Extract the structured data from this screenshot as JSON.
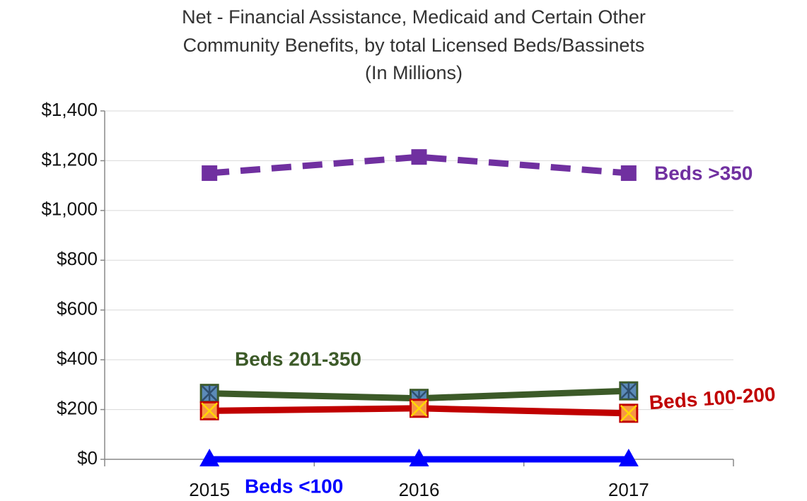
{
  "chart_data": {
    "type": "line",
    "title": [
      "Net - Financial Assistance, Medicaid and Certain Other",
      "Community Benefits, by total Licensed Beds/Bassinets",
      "(In Millions)"
    ],
    "categories": [
      "2015",
      "2016",
      "2017"
    ],
    "series": [
      {
        "name": "Beds >350",
        "color": "#7030a0",
        "values": [
          1150,
          1215,
          1150
        ],
        "dash": true,
        "marker": "square"
      },
      {
        "name": "Beds 201-350",
        "color": "#3c5a28",
        "values": [
          265,
          245,
          275
        ],
        "dash": false,
        "marker": "square-star"
      },
      {
        "name": "Beds 100-200",
        "color": "#c00000",
        "values": [
          195,
          205,
          185
        ],
        "dash": false,
        "marker": "square-x"
      },
      {
        "name": "Beds <100",
        "color": "#0000ff",
        "values": [
          0,
          0,
          0
        ],
        "dash": false,
        "marker": "triangle"
      }
    ],
    "ylim": [
      0,
      1400
    ],
    "yticks": [
      {
        "value": 0,
        "label": "$0"
      },
      {
        "value": 200,
        "label": "$200"
      },
      {
        "value": 400,
        "label": "$400"
      },
      {
        "value": 600,
        "label": "$600"
      },
      {
        "value": 800,
        "label": "$800"
      },
      {
        "value": 1000,
        "label": "$1,000"
      },
      {
        "value": 1200,
        "label": "$1,200"
      },
      {
        "value": 1400,
        "label": "$1,400"
      }
    ],
    "grid": true
  }
}
